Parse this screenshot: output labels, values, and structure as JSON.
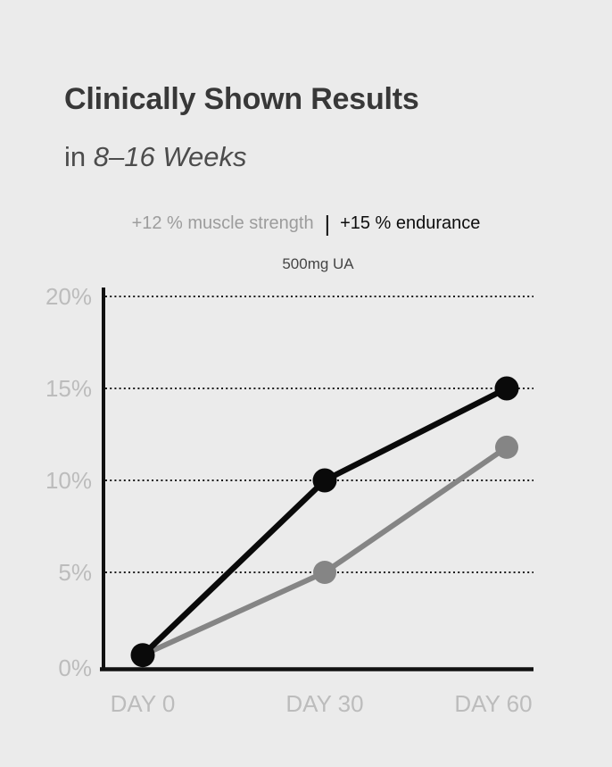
{
  "header": {
    "title": "Clinically Shown Results",
    "subtitle_prefix": "in",
    "subtitle_emphasis": "8–16 Weeks"
  },
  "stats": {
    "muscle": "+12 % muscle strength",
    "separator": "|",
    "endurance": "+15 % endurance"
  },
  "colors": {
    "background": "#ebebeb",
    "title_text": "#383838",
    "subtitle_text": "#4c4c4c",
    "stat_muted": "#9c9c9c",
    "stat_strong": "#0d0d0d",
    "caption_text": "#454545",
    "axis": "#111111",
    "grid": "#1c1c1c",
    "tick_label": "#bcbcbc",
    "series_strength": "#858585",
    "series_endurance": "#0a0a0a"
  },
  "chart_data": {
    "type": "line",
    "title": "500mg UA",
    "categories": [
      "DAY 0",
      "DAY 30",
      "DAY 60"
    ],
    "x_values_days": [
      0,
      30,
      60
    ],
    "yticks": [
      "0%",
      "5%",
      "10%",
      "15%",
      "20%"
    ],
    "ytick_values": [
      0,
      5,
      10,
      15,
      20
    ],
    "ylim": [
      0,
      20
    ],
    "grid": "horizontal dotted lines at 5%, 10%, 15%, 20%",
    "legend_position": "none",
    "series": [
      {
        "name": "muscle strength",
        "claim": "+12 % muscle strength",
        "color": "#858585",
        "values": [
          0.5,
          5,
          11.8
        ]
      },
      {
        "name": "endurance",
        "claim": "+15 % endurance",
        "color": "#0a0a0a",
        "values": [
          0.5,
          10,
          15
        ]
      }
    ]
  }
}
